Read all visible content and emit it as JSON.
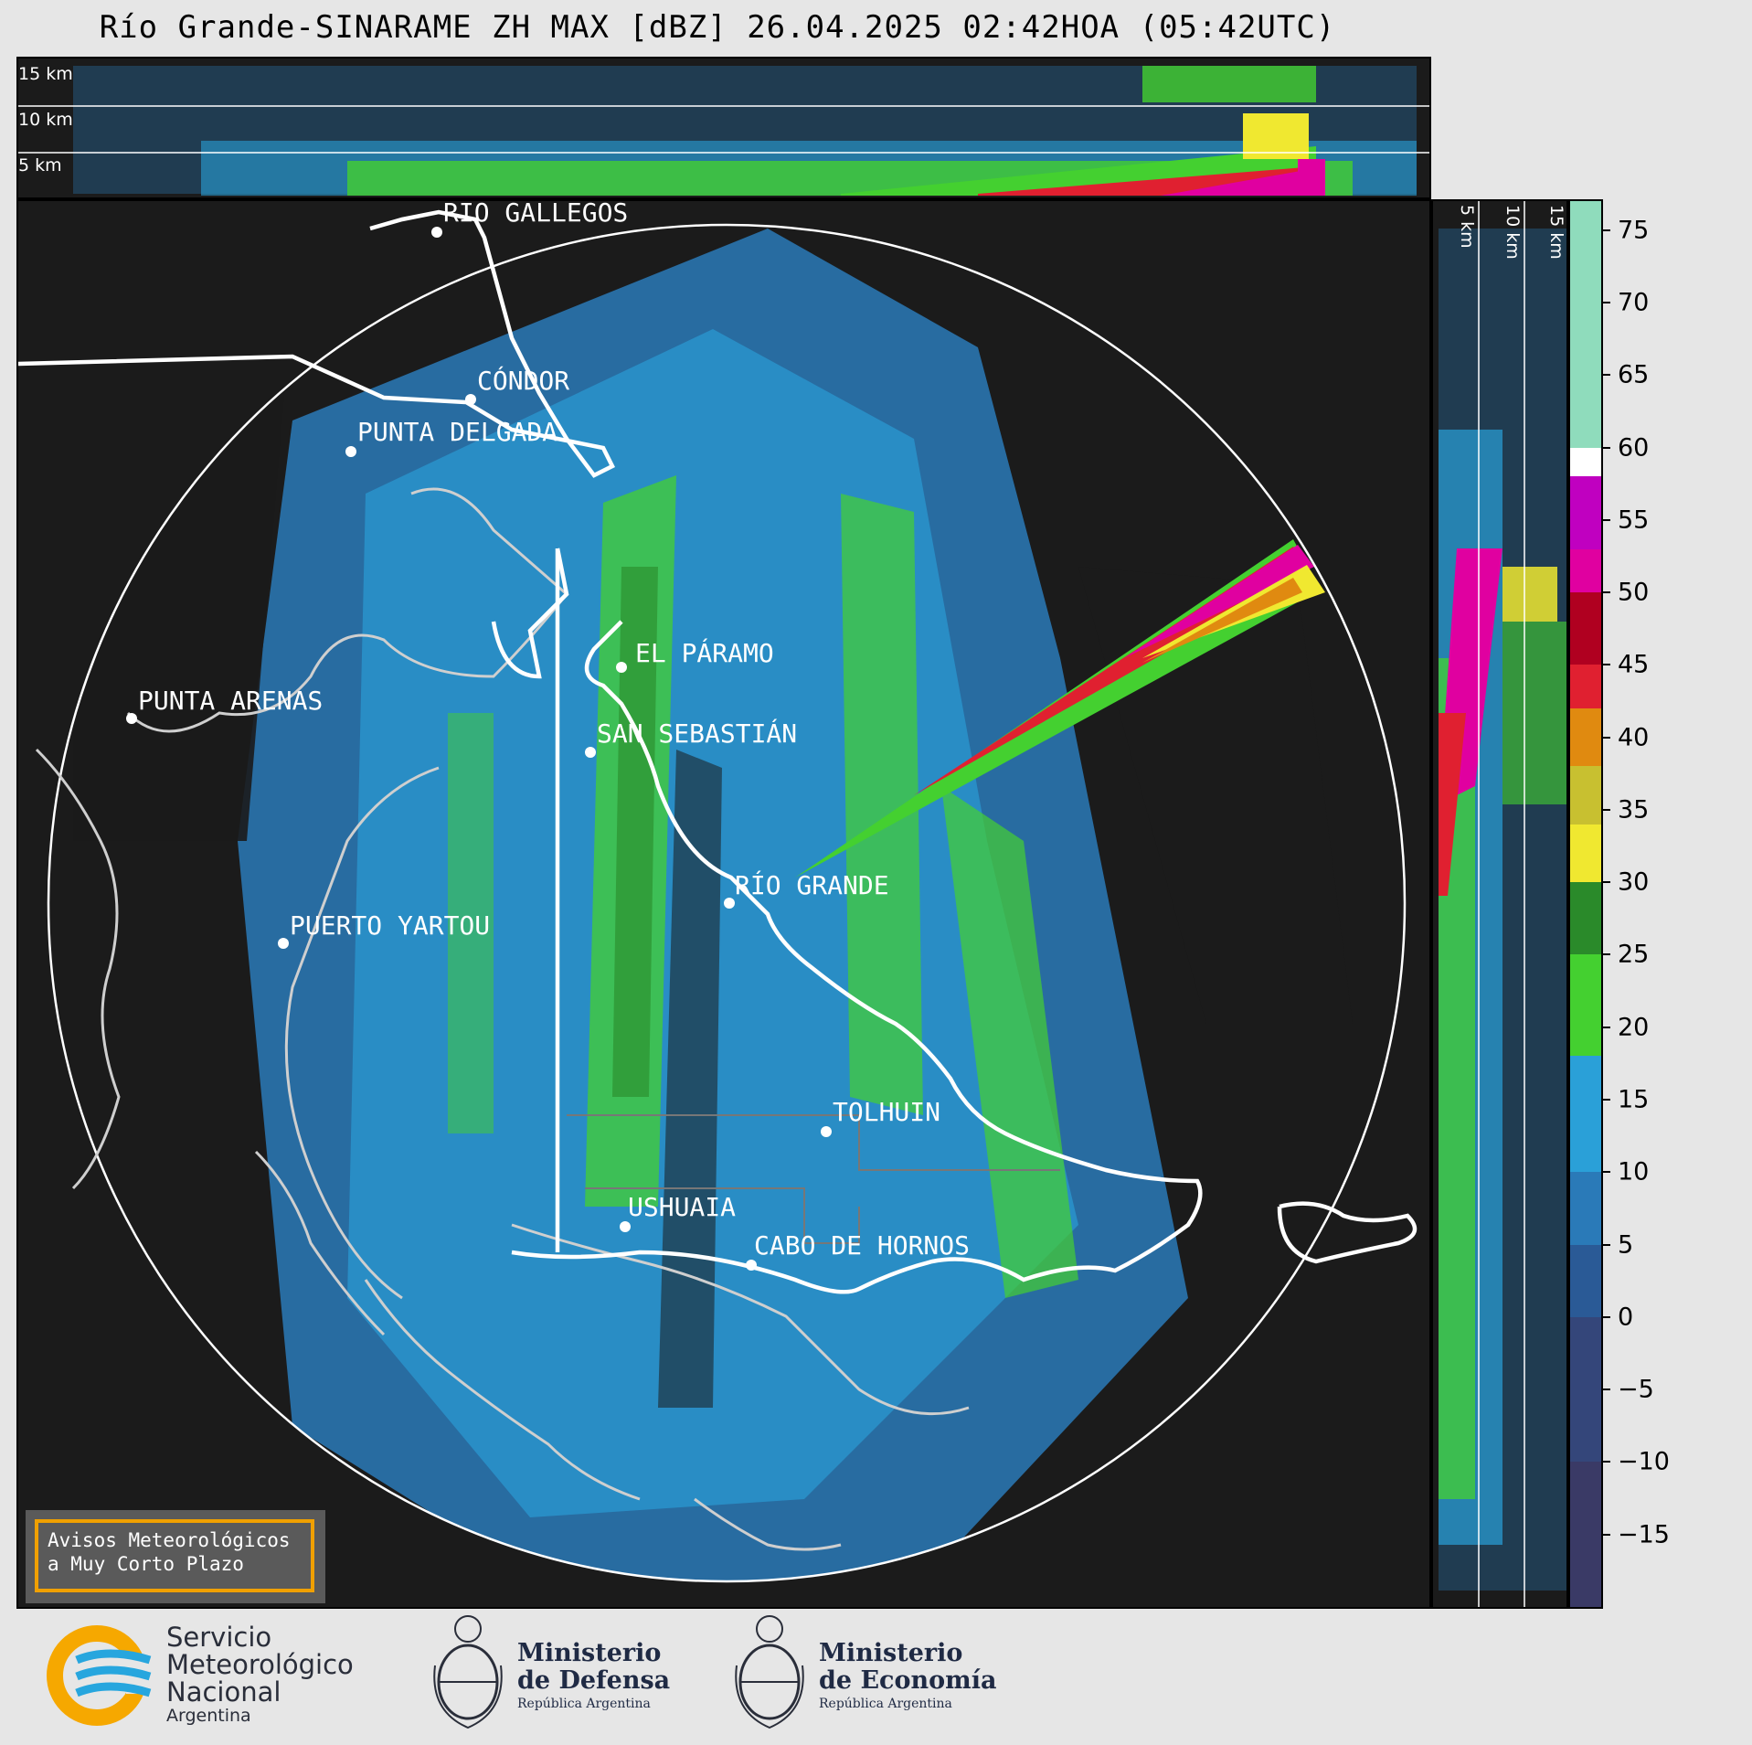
{
  "title": "Río Grande-SINARAME ZH MAX [dBZ] 26.04.2025 02:42HOA (05:42UTC)",
  "top_panel": {
    "height_labels": [
      "15 km",
      "10 km",
      "5 km"
    ]
  },
  "side_panel": {
    "height_labels": [
      "5 km",
      "10 km",
      "15 km"
    ]
  },
  "cities": [
    {
      "name": "RÍO GALLEGOS"
    },
    {
      "name": "CÓNDOR"
    },
    {
      "name": "PUNTA DELGADA"
    },
    {
      "name": "PUNTA ARENAS"
    },
    {
      "name": "EL PÁRAMO"
    },
    {
      "name": "SAN SEBASTIÁN"
    },
    {
      "name": "RÍO GRANDE"
    },
    {
      "name": "PUERTO YARTOU"
    },
    {
      "name": "TOLHUIN"
    },
    {
      "name": "USHUAIA"
    },
    {
      "name": "CABO DE HORNOS"
    }
  ],
  "colorbar": {
    "unit": "dBZ",
    "ticks": [
      "75",
      "70",
      "65",
      "60",
      "55",
      "50",
      "45",
      "40",
      "35",
      "30",
      "25",
      "20",
      "15",
      "10",
      "5",
      "0",
      "−5",
      "−10",
      "−15"
    ],
    "range": [
      -20,
      77
    ],
    "segments": [
      {
        "from": 60,
        "to": 77,
        "color": "#8fdcbc"
      },
      {
        "from": 58,
        "to": 60,
        "color": "#ffffff"
      },
      {
        "from": 53,
        "to": 58,
        "color": "#c000c0"
      },
      {
        "from": 50,
        "to": 53,
        "color": "#e000a0"
      },
      {
        "from": 45,
        "to": 50,
        "color": "#b00020"
      },
      {
        "from": 42,
        "to": 45,
        "color": "#e02030"
      },
      {
        "from": 38,
        "to": 42,
        "color": "#e08a10"
      },
      {
        "from": 34,
        "to": 38,
        "color": "#c8c030"
      },
      {
        "from": 30,
        "to": 34,
        "color": "#f0e830"
      },
      {
        "from": 25,
        "to": 30,
        "color": "#2a8a2a"
      },
      {
        "from": 18,
        "to": 25,
        "color": "#44d030"
      },
      {
        "from": 10,
        "to": 18,
        "color": "#2aa0d8"
      },
      {
        "from": 5,
        "to": 10,
        "color": "#2a7ab8"
      },
      {
        "from": 0,
        "to": 5,
        "color": "#2a5a96"
      },
      {
        "from": -10,
        "to": 0,
        "color": "#34467a"
      },
      {
        "from": -20,
        "to": -10,
        "color": "#3a3a66"
      }
    ]
  },
  "aviso": {
    "line1": "Avisos Meteorológicos",
    "line2": "a Muy Corto Plazo"
  },
  "logos": {
    "smn": {
      "line1": "Servicio",
      "line2": "Meteorológico",
      "line3": "Nacional",
      "line4": "Argentina"
    },
    "defensa": {
      "line1": "Ministerio",
      "line2": "de Defensa",
      "line3": "República Argentina"
    },
    "economia": {
      "line1": "Ministerio",
      "line2": "de Economía",
      "line3": "República Argentina"
    }
  },
  "colors": {
    "background": "#1b1b1b",
    "range_ring": "#ffffff",
    "coast": "#cfcfcf",
    "border": "#ffffff"
  }
}
